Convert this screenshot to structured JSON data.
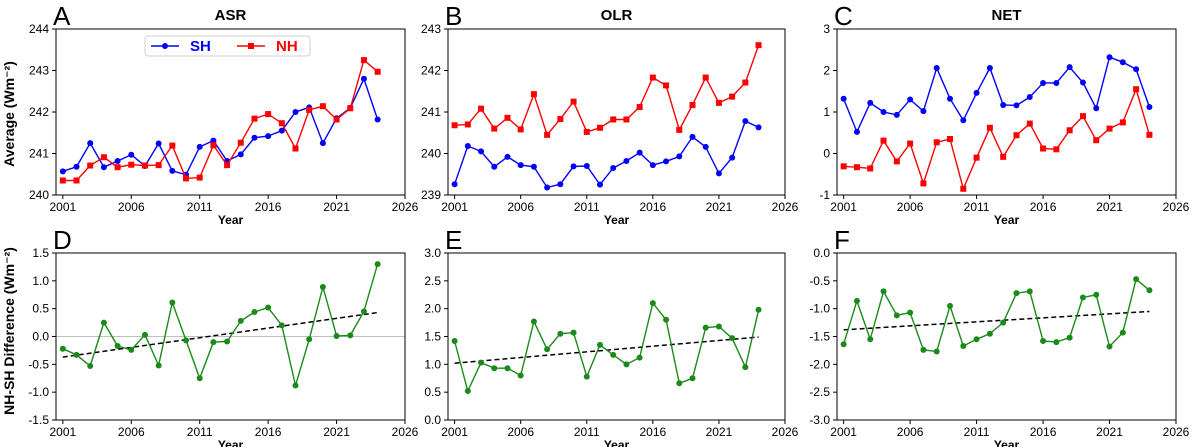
{
  "figure": {
    "ylabel_top": "Average (Wm⁻²)",
    "ylabel_bottom": "NH-SH Difference (Wm⁻²)"
  },
  "chart_data": [
    {
      "id": "A",
      "type": "line",
      "title": "ASR",
      "xlabel": "Year",
      "xlim": [
        2000.5,
        2026
      ],
      "xticks": [
        2001,
        2006,
        2011,
        2016,
        2021,
        2026
      ],
      "ylim": [
        240,
        244
      ],
      "yticks": [
        240,
        241,
        242,
        243,
        244
      ],
      "legend": "top-left",
      "x": [
        2001,
        2002,
        2003,
        2004,
        2005,
        2006,
        2007,
        2008,
        2009,
        2010,
        2011,
        2012,
        2013,
        2014,
        2015,
        2016,
        2017,
        2018,
        2019,
        2020,
        2021,
        2022,
        2023,
        2024
      ],
      "series": [
        {
          "name": "SH",
          "color": "#0000ff",
          "marker": "circle",
          "values": [
            240.57,
            240.68,
            241.25,
            240.67,
            240.82,
            240.97,
            240.7,
            241.24,
            240.58,
            240.49,
            241.16,
            241.31,
            240.82,
            240.98,
            241.38,
            241.42,
            241.55,
            242.0,
            242.11,
            241.25,
            241.85,
            242.1,
            242.8,
            241.82
          ]
        },
        {
          "name": "NH",
          "color": "#ff0000",
          "marker": "square",
          "values": [
            240.35,
            240.35,
            240.71,
            240.91,
            240.67,
            240.73,
            240.71,
            240.72,
            241.19,
            240.4,
            240.42,
            241.2,
            240.72,
            241.26,
            241.84,
            241.95,
            241.73,
            241.12,
            242.05,
            242.14,
            241.82,
            242.09,
            243.25,
            242.97
          ]
        }
      ]
    },
    {
      "id": "B",
      "type": "line",
      "title": "OLR",
      "xlabel": "Year",
      "xlim": [
        2000.5,
        2026
      ],
      "xticks": [
        2001,
        2006,
        2011,
        2016,
        2021,
        2026
      ],
      "ylim": [
        239,
        243
      ],
      "yticks": [
        239,
        240,
        241,
        242,
        243
      ],
      "x": [
        2001,
        2002,
        2003,
        2004,
        2005,
        2006,
        2007,
        2008,
        2009,
        2010,
        2011,
        2012,
        2013,
        2014,
        2015,
        2016,
        2017,
        2018,
        2019,
        2020,
        2021,
        2022,
        2023,
        2024
      ],
      "series": [
        {
          "name": "SH",
          "color": "#0000ff",
          "marker": "circle",
          "values": [
            239.26,
            240.18,
            240.05,
            239.68,
            239.92,
            239.72,
            239.68,
            239.18,
            239.26,
            239.69,
            239.7,
            239.25,
            239.65,
            239.82,
            240.02,
            239.72,
            239.81,
            239.93,
            240.4,
            240.16,
            239.52,
            239.9,
            240.78,
            240.63
          ]
        },
        {
          "name": "NH",
          "color": "#ff0000",
          "marker": "square",
          "values": [
            240.68,
            240.7,
            241.08,
            240.6,
            240.86,
            240.58,
            241.43,
            240.45,
            240.83,
            241.25,
            240.52,
            240.62,
            240.82,
            240.82,
            241.12,
            241.83,
            241.64,
            240.57,
            241.17,
            241.83,
            241.22,
            241.37,
            241.71,
            242.61
          ]
        }
      ]
    },
    {
      "id": "C",
      "type": "line",
      "title": "NET",
      "xlabel": "Year",
      "xlim": [
        2000.5,
        2026
      ],
      "xticks": [
        2001,
        2006,
        2011,
        2016,
        2021,
        2026
      ],
      "ylim": [
        -1,
        3
      ],
      "yticks": [
        -1,
        0,
        1,
        2,
        3
      ],
      "x": [
        2001,
        2002,
        2003,
        2004,
        2005,
        2006,
        2007,
        2008,
        2009,
        2010,
        2011,
        2012,
        2013,
        2014,
        2015,
        2016,
        2017,
        2018,
        2019,
        2020,
        2021,
        2022,
        2023,
        2024
      ],
      "series": [
        {
          "name": "SH",
          "color": "#0000ff",
          "marker": "circle",
          "values": [
            1.32,
            0.52,
            1.22,
            1.0,
            0.93,
            1.3,
            1.02,
            2.06,
            1.32,
            0.8,
            1.46,
            2.06,
            1.17,
            1.16,
            1.36,
            1.7,
            1.7,
            2.08,
            1.71,
            1.09,
            2.32,
            2.2,
            2.03,
            1.12
          ]
        },
        {
          "name": "NH",
          "color": "#ff0000",
          "marker": "square",
          "values": [
            -0.31,
            -0.33,
            -0.36,
            0.31,
            -0.19,
            0.24,
            -0.72,
            0.27,
            0.35,
            -0.85,
            -0.1,
            0.62,
            -0.08,
            0.44,
            0.72,
            0.12,
            0.1,
            0.56,
            0.9,
            0.32,
            0.6,
            0.75,
            1.55,
            0.45
          ]
        }
      ]
    },
    {
      "id": "D",
      "type": "line",
      "title": "",
      "xlabel": "Year",
      "xlim": [
        2000.5,
        2026
      ],
      "xticks": [
        2001,
        2006,
        2011,
        2016,
        2021,
        2026
      ],
      "ylim": [
        -1.5,
        1.5
      ],
      "yticks": [
        -1.5,
        -1.0,
        -0.5,
        0.0,
        0.5,
        1.0,
        1.5
      ],
      "zero_line": true,
      "x": [
        2001,
        2002,
        2003,
        2004,
        2005,
        2006,
        2007,
        2008,
        2009,
        2010,
        2011,
        2012,
        2013,
        2014,
        2015,
        2016,
        2017,
        2018,
        2019,
        2020,
        2021,
        2022,
        2023,
        2024
      ],
      "series": [
        {
          "name": "",
          "color": "#1a8a1a",
          "marker": "circle",
          "values": [
            -0.22,
            -0.33,
            -0.53,
            0.25,
            -0.17,
            -0.24,
            0.03,
            -0.52,
            0.61,
            -0.07,
            -0.75,
            -0.1,
            -0.09,
            0.28,
            0.44,
            0.52,
            0.2,
            -0.88,
            -0.05,
            0.89,
            0.01,
            0.02,
            0.45,
            1.3
          ]
        }
      ],
      "trend": {
        "x": [
          2001,
          2024
        ],
        "y": [
          -0.37,
          0.43
        ]
      }
    },
    {
      "id": "E",
      "type": "line",
      "title": "",
      "xlabel": "Year",
      "xlim": [
        2000.5,
        2026
      ],
      "xticks": [
        2001,
        2006,
        2011,
        2016,
        2021,
        2026
      ],
      "ylim": [
        0,
        3.0
      ],
      "yticks": [
        0,
        0.5,
        1.0,
        1.5,
        2.0,
        2.5,
        3.0
      ],
      "x": [
        2001,
        2002,
        2003,
        2004,
        2005,
        2006,
        2007,
        2008,
        2009,
        2010,
        2011,
        2012,
        2013,
        2014,
        2015,
        2016,
        2017,
        2018,
        2019,
        2020,
        2021,
        2022,
        2023,
        2024
      ],
      "series": [
        {
          "name": "",
          "color": "#1a8a1a",
          "marker": "circle",
          "values": [
            1.42,
            0.52,
            1.03,
            0.93,
            0.93,
            0.8,
            1.77,
            1.27,
            1.55,
            1.57,
            0.78,
            1.35,
            1.17,
            1.0,
            1.12,
            2.1,
            1.8,
            0.66,
            0.75,
            1.66,
            1.68,
            1.47,
            0.95,
            1.98
          ]
        }
      ],
      "trend": {
        "x": [
          2001,
          2024
        ],
        "y": [
          1.02,
          1.49
        ]
      }
    },
    {
      "id": "F",
      "type": "line",
      "title": "",
      "xlabel": "Year",
      "xlim": [
        2000.5,
        2026
      ],
      "xticks": [
        2001,
        2006,
        2011,
        2016,
        2021,
        2026
      ],
      "ylim": [
        -3.0,
        0.0
      ],
      "yticks": [
        -3.0,
        -2.5,
        -2.0,
        -1.5,
        -1.0,
        -0.5,
        0.0
      ],
      "x": [
        2001,
        2002,
        2003,
        2004,
        2005,
        2006,
        2007,
        2008,
        2009,
        2010,
        2011,
        2012,
        2013,
        2014,
        2015,
        2016,
        2017,
        2018,
        2019,
        2020,
        2021,
        2022,
        2023,
        2024
      ],
      "series": [
        {
          "name": "",
          "color": "#1a8a1a",
          "marker": "circle",
          "values": [
            -1.64,
            -0.86,
            -1.55,
            -0.69,
            -1.12,
            -1.07,
            -1.74,
            -1.77,
            -0.95,
            -1.67,
            -1.55,
            -1.45,
            -1.25,
            -0.72,
            -0.69,
            -1.58,
            -1.6,
            -1.52,
            -0.8,
            -0.75,
            -1.68,
            -1.43,
            -0.47,
            -0.67
          ]
        }
      ],
      "trend": {
        "x": [
          2001,
          2024
        ],
        "y": [
          -1.38,
          -1.05
        ]
      }
    }
  ]
}
